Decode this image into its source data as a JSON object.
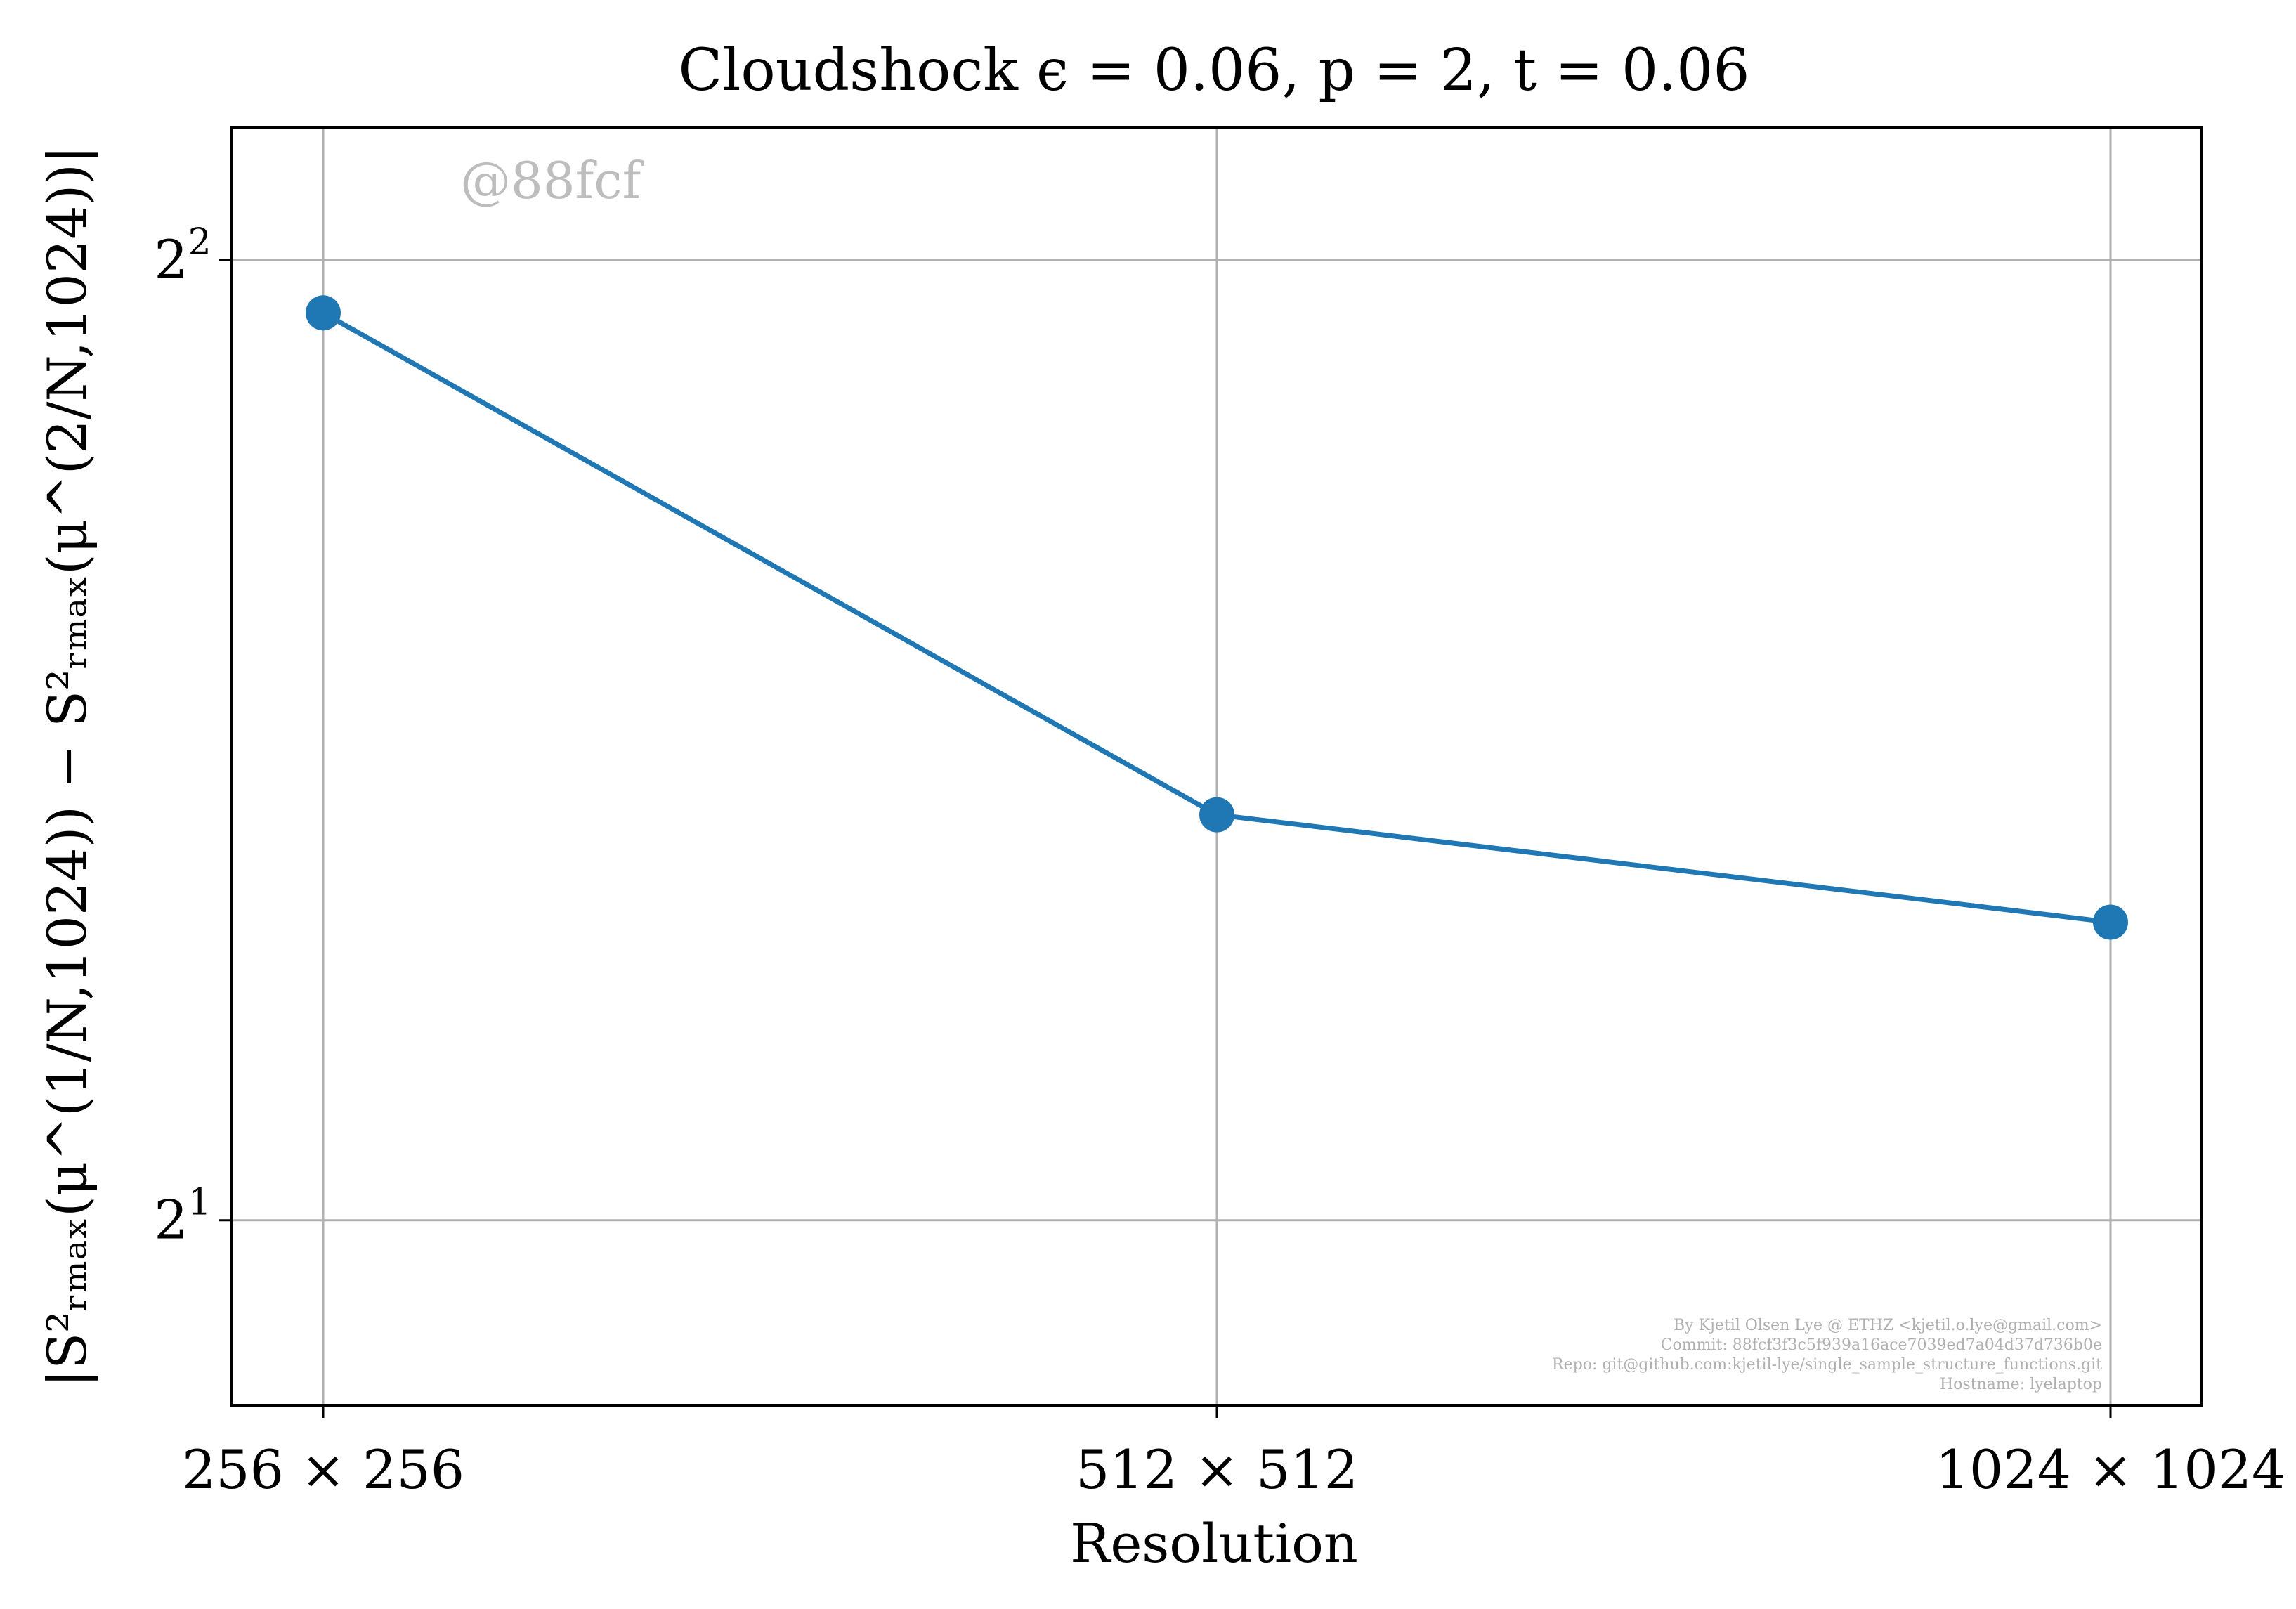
{
  "chart_data": {
    "type": "line",
    "title": "Cloudshock ϵ = 0.06, p = 2, t = 0.06",
    "xlabel": "Resolution",
    "ylabel": "|S²ᵣₘₐₓ(μ^(1/N,1024)) − S²ᵣₘₐₓ(μ^(2/N,1024))|",
    "categories": [
      "256 × 256",
      "512 × 512",
      "1024 × 1024"
    ],
    "y_scale": "log2",
    "y_ticks": [
      {
        "value": 2,
        "base": "2",
        "exp": "1"
      },
      {
        "value": 4,
        "base": "2",
        "exp": "2"
      }
    ],
    "ylim": [
      1.75,
      4.4
    ],
    "grid": true,
    "series": [
      {
        "values": [
          3.85,
          2.68,
          2.48
        ],
        "color": "#1f77b4",
        "marker": "circle"
      }
    ]
  },
  "watermark": "@88fcf",
  "footer": [
    "By Kjetil Olsen Lye @ ETHZ <kjetil.o.lye@gmail.com>",
    "Commit: 88fcf3f3c5f939a16ace7039ed7a04d37d736b0e",
    "Repo: git@github.com:kjetil-lye/single_sample_structure_functions.git",
    "Hostname: lyelaptop"
  ]
}
